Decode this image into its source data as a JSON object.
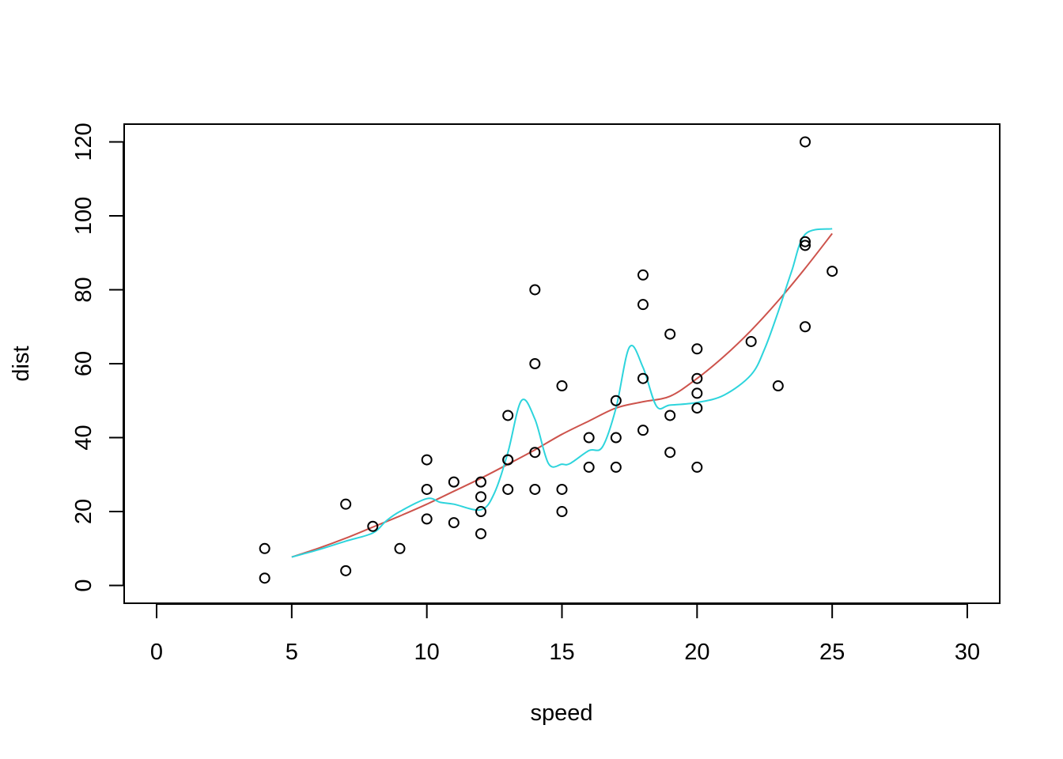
{
  "chart_data": {
    "type": "scatter",
    "title": "",
    "xlabel": "speed",
    "ylabel": "dist",
    "xlim": [
      -1.2,
      31.2
    ],
    "ylim": [
      -4.8,
      124.8
    ],
    "xticks": [
      0,
      5,
      10,
      15,
      20,
      25,
      30
    ],
    "yticks": [
      0,
      20,
      40,
      60,
      80,
      100,
      120
    ],
    "grid": false,
    "points": {
      "x": [
        4,
        4,
        7,
        7,
        8,
        9,
        10,
        10,
        10,
        11,
        11,
        12,
        12,
        12,
        12,
        13,
        13,
        13,
        13,
        14,
        14,
        14,
        14,
        15,
        15,
        15,
        16,
        16,
        17,
        17,
        17,
        18,
        18,
        18,
        18,
        19,
        19,
        19,
        20,
        20,
        20,
        20,
        20,
        22,
        23,
        24,
        24,
        24,
        24,
        25
      ],
      "y": [
        2,
        10,
        4,
        22,
        16,
        10,
        18,
        26,
        34,
        17,
        28,
        14,
        20,
        24,
        28,
        26,
        34,
        34,
        46,
        26,
        36,
        60,
        80,
        20,
        26,
        54,
        32,
        40,
        32,
        40,
        50,
        42,
        56,
        76,
        84,
        36,
        46,
        68,
        32,
        48,
        52,
        56,
        64,
        66,
        54,
        70,
        92,
        93,
        120,
        85
      ]
    },
    "series": [
      {
        "color": "#CD534C",
        "x": [
          5,
          6,
          7,
          8,
          9,
          10,
          11,
          12,
          13,
          14,
          15,
          16,
          17,
          18,
          19,
          20,
          21,
          22,
          23,
          24,
          25
        ],
        "y": [
          7.7,
          10.1,
          12.8,
          15.8,
          18.8,
          22.0,
          25.5,
          29.0,
          32.8,
          36.7,
          40.9,
          44.5,
          48.0,
          49.7,
          51.2,
          56.0,
          62.0,
          69.0,
          77.0,
          85.8,
          95.2
        ]
      },
      {
        "color": "#2DD4DC",
        "x": [
          5,
          6,
          7,
          8,
          8.5,
          9,
          10,
          10.5,
          11,
          12,
          12.5,
          13,
          13.5,
          14,
          14.5,
          15,
          15.3,
          16,
          16.5,
          17,
          17.5,
          18,
          18.5,
          19,
          20,
          21,
          22,
          22.5,
          23,
          23.5,
          24,
          25
        ],
        "y": [
          7.7,
          9.7,
          12.0,
          14.2,
          17.5,
          20.0,
          23.5,
          22.5,
          22.0,
          20.5,
          25.0,
          36.0,
          50.0,
          45.0,
          33.0,
          32.8,
          33.0,
          36.5,
          37.5,
          48.0,
          64.5,
          59.0,
          48.5,
          48.8,
          49.5,
          51.5,
          57.0,
          64.0,
          74.0,
          85.0,
          95.0,
          96.5
        ]
      }
    ]
  }
}
